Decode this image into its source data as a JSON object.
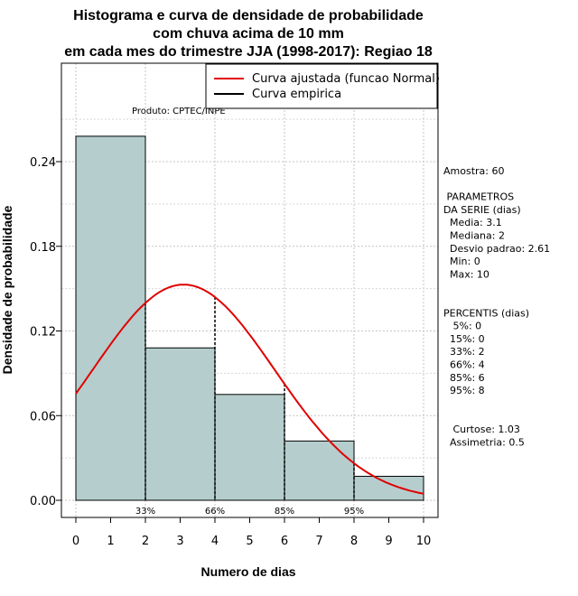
{
  "chart_data": {
    "type": "bar",
    "title_lines": [
      "Histograma e curva de densidade de probabilidade",
      "com chuva acima de 10 mm",
      "em cada mes do trimestre JJA (1998-2017): Regiao 18"
    ],
    "xlabel": "Numero de dias",
    "ylabel": "Densidade de probabilidade",
    "xlim": [
      0,
      10
    ],
    "ylim": [
      0,
      0.3
    ],
    "x_ticks": [
      "0",
      "1",
      "2",
      "3",
      "4",
      "5",
      "6",
      "7",
      "8",
      "9",
      "10"
    ],
    "y_ticks": [
      "0.00",
      "0.06",
      "0.12",
      "0.18",
      "0.24"
    ],
    "bins": [
      {
        "from": 0,
        "to": 2,
        "value": 0.258
      },
      {
        "from": 2,
        "to": 4,
        "value": 0.108
      },
      {
        "from": 4,
        "to": 6,
        "value": 0.075
      },
      {
        "from": 6,
        "to": 8,
        "value": 0.042
      },
      {
        "from": 8,
        "to": 10,
        "value": 0.017
      }
    ],
    "fitted_curve": {
      "name": "Curva ajustada (funcao Normal)",
      "distribution": "normal",
      "mean": 3.1,
      "sd": 2.61,
      "color": "#e00000"
    },
    "empirical_curve": {
      "name": "Curva empirica",
      "color": "#000000"
    },
    "percentile_lines": [
      {
        "x": 2,
        "label": "33%"
      },
      {
        "x": 4,
        "label": "66%"
      },
      {
        "x": 6,
        "label": "85%"
      },
      {
        "x": 8,
        "label": "95%"
      }
    ],
    "grid": true,
    "legend_position": "top-right",
    "bar_color": "#b5cdcd",
    "product_label": "Produto: CPTEC/INPE"
  },
  "side_panel": {
    "lines": [
      "Amostra: 60",
      "",
      " PARAMETROS",
      "DA SERIE (dias)",
      "  Media: 3.1",
      "  Mediana: 2",
      "  Desvio padrao: 2.61",
      "  Min: 0",
      "  Max: 10",
      "",
      "",
      "PERCENTIS (dias)",
      "   5%: 0",
      "  15%: 0",
      "  33%: 2",
      "  66%: 4",
      "  85%: 6",
      "  95%: 8",
      "",
      "",
      "   Curtose: 1.03",
      "  Assimetria: 0.5"
    ]
  }
}
